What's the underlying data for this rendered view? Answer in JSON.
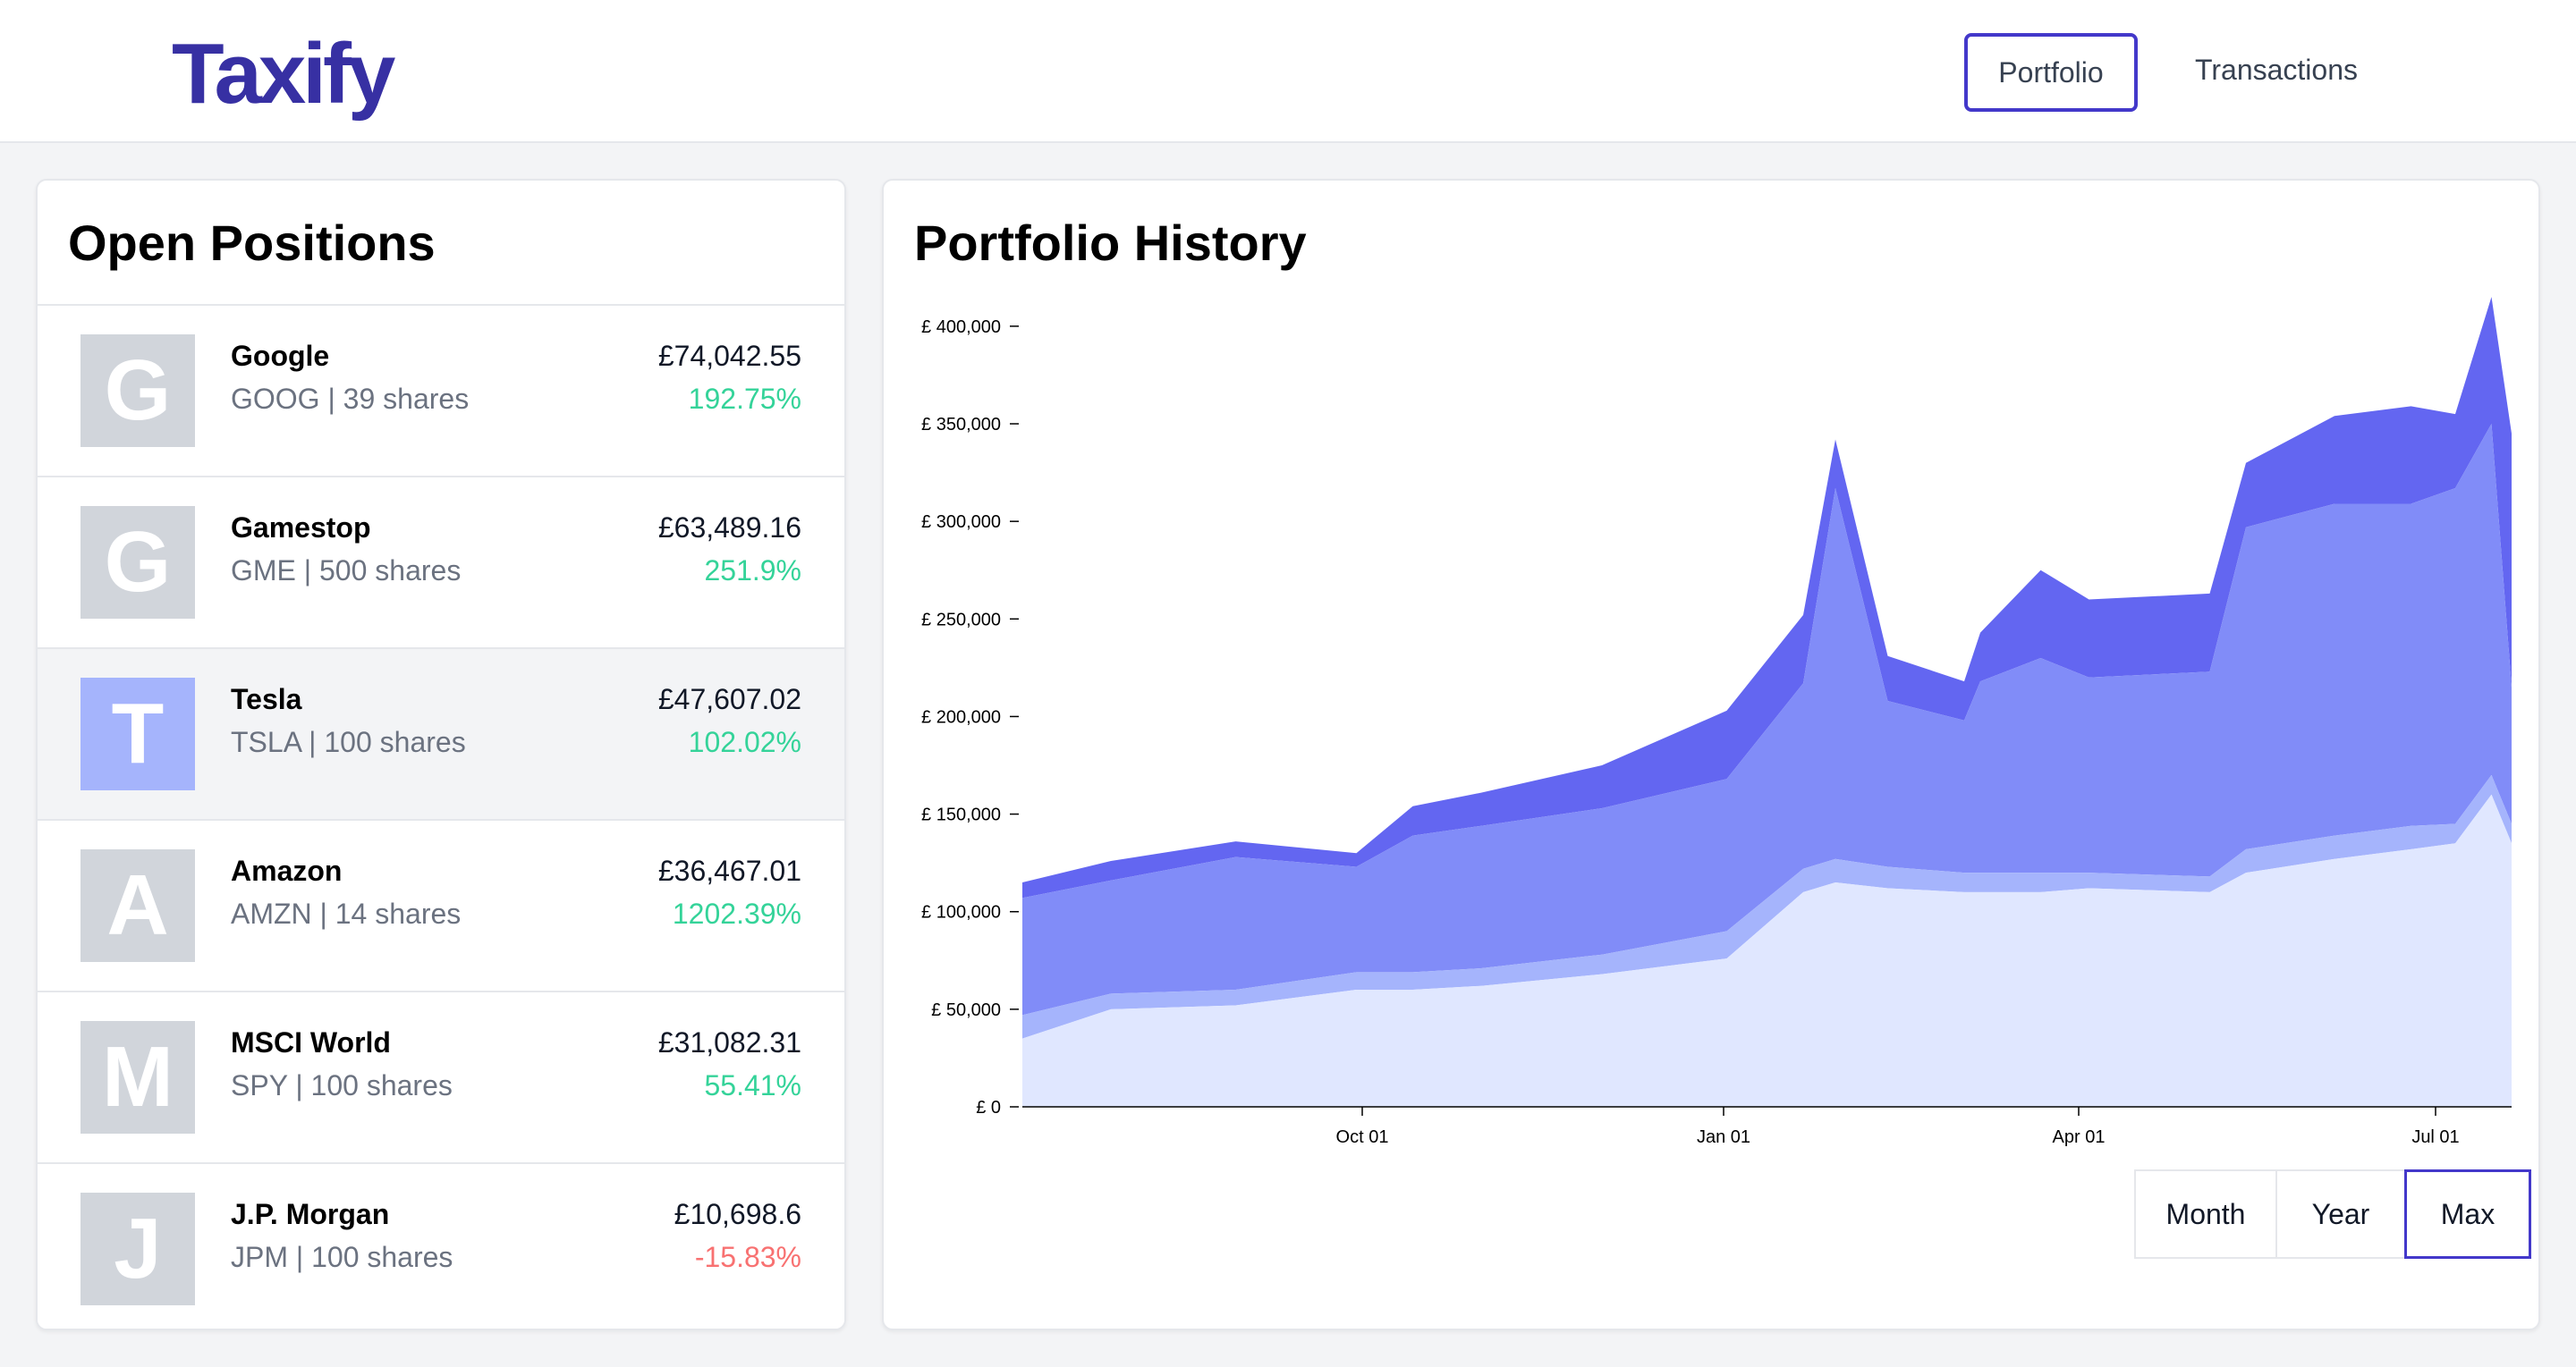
{
  "app": {
    "logo": "Taxify"
  },
  "nav": {
    "portfolio": "Portfolio",
    "transactions": "Transactions"
  },
  "positions": {
    "title": "Open Positions",
    "items": [
      {
        "initial": "G",
        "name": "Google",
        "sub": "GOOG | 39 shares",
        "value": "£74,042.55",
        "change": "192.75%",
        "trend": "up"
      },
      {
        "initial": "G",
        "name": "Gamestop",
        "sub": "GME | 500 shares",
        "value": "£63,489.16",
        "change": "251.9%",
        "trend": "up"
      },
      {
        "initial": "T",
        "name": "Tesla",
        "sub": "TSLA | 100 shares",
        "value": "£47,607.02",
        "change": "102.02%",
        "trend": "up",
        "selected": true
      },
      {
        "initial": "A",
        "name": "Amazon",
        "sub": "AMZN | 14 shares",
        "value": "£36,467.01",
        "change": "1202.39%",
        "trend": "up"
      },
      {
        "initial": "M",
        "name": "MSCI World",
        "sub": "SPY | 100 shares",
        "value": "£31,082.31",
        "change": "55.41%",
        "trend": "up"
      },
      {
        "initial": "J",
        "name": "J.P. Morgan",
        "sub": "JPM | 100 shares",
        "value": "£10,698.6",
        "change": "-15.83%",
        "trend": "down"
      }
    ]
  },
  "history": {
    "title": "Portfolio History",
    "ranges": [
      "Month",
      "Year",
      "Max"
    ],
    "active_range": "Max"
  },
  "colors": {
    "brand": "#3730a3",
    "positive": "#34d399",
    "negative": "#f87171",
    "layer_top": "#6366f1",
    "layer_mid": "#818cf8",
    "layer_low": "#a5b4fc",
    "layer_base": "#e0e7ff"
  },
  "chart_data": {
    "type": "area",
    "stacked": true,
    "y_ticks": [
      "£ 0",
      "£ 50,000",
      "£ 100,000",
      "£ 150,000",
      "£ 200,000",
      "£ 250,000",
      "£ 300,000",
      "£ 350,000",
      "£ 400,000"
    ],
    "ylim": [
      0,
      400000
    ],
    "x_ticks": [
      "Oct 01",
      "Jan 01",
      "Apr 01",
      "Jul 01"
    ],
    "grid": false,
    "legend": "none",
    "x": [
      "Jul 10",
      "Aug 01",
      "Sep 01",
      "Oct 01",
      "Oct 15",
      "Nov 01",
      "Dec 01",
      "Jan 01",
      "Jan 20",
      "Jan 28",
      "Feb 10",
      "Mar 01",
      "Mar 05",
      "Mar 20",
      "Apr 01",
      "May 01",
      "May 10",
      "Jun 01",
      "Jun 20",
      "Jul 01",
      "Jul 10",
      "Jul 15"
    ],
    "series": [
      {
        "values": [
          35000,
          50000,
          52000,
          60000,
          60000,
          62000,
          68000,
          76000,
          110000,
          115000,
          112000,
          110000,
          110000,
          110000,
          112000,
          110000,
          120000,
          127000,
          132000,
          135000,
          160000,
          135000
        ]
      },
      {
        "values": [
          12000,
          8000,
          8000,
          9000,
          9000,
          9000,
          10000,
          14000,
          12000,
          12000,
          11000,
          10000,
          10000,
          10000,
          8000,
          8000,
          12000,
          12000,
          12000,
          10000,
          10000,
          10000
        ]
      },
      {
        "values": [
          60000,
          58000,
          68000,
          54000,
          70000,
          73000,
          75000,
          78000,
          95000,
          190000,
          85000,
          78000,
          98000,
          110000,
          100000,
          105000,
          165000,
          170000,
          165000,
          172000,
          180000,
          70000
        ]
      },
      {
        "values": [
          8000,
          10000,
          8000,
          7000,
          15000,
          17000,
          22000,
          35000,
          35000,
          25000,
          23000,
          20000,
          25000,
          45000,
          40000,
          40000,
          33000,
          45000,
          50000,
          38000,
          65000,
          130000
        ]
      }
    ]
  }
}
